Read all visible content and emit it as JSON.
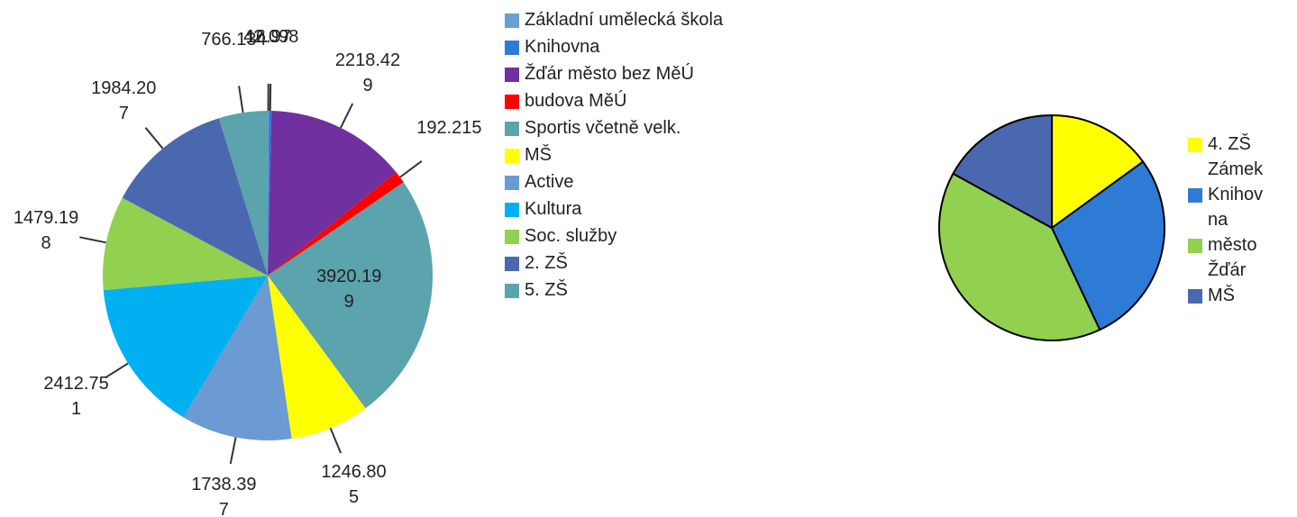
{
  "chart_data": [
    {
      "type": "pie",
      "categories": [
        "Základní umělecká škola",
        "Knihovna",
        "Žďár město bez MěÚ",
        "budova MěÚ",
        "Sportis včetně velk.",
        "MŠ",
        "Active",
        "Kultura",
        "Soc. služby",
        "2. ZŠ",
        "5. ZŠ"
      ],
      "values": [
        16.97,
        42.098,
        2218.429,
        192.215,
        3920.199,
        1246.805,
        1738.397,
        2412.751,
        1479.198,
        1984.207,
        766.134
      ],
      "colors": [
        "#6a9fd4",
        "#2e7bd6",
        "#7030a0",
        "#ff0000",
        "#5ba3ad",
        "#ffff00",
        "#6b9bd2",
        "#00b0f0",
        "#92d050",
        "#4a68b0",
        "#5ba3ad"
      ]
    },
    {
      "type": "pie",
      "categories": [
        "4. ZŠ Zámek",
        "Knihovna",
        "město Žďár",
        "MŠ"
      ],
      "values": [
        15,
        28,
        40,
        17
      ],
      "colors": [
        "#ffff00",
        "#2e7bd6",
        "#92d050",
        "#4a68b0"
      ]
    }
  ]
}
